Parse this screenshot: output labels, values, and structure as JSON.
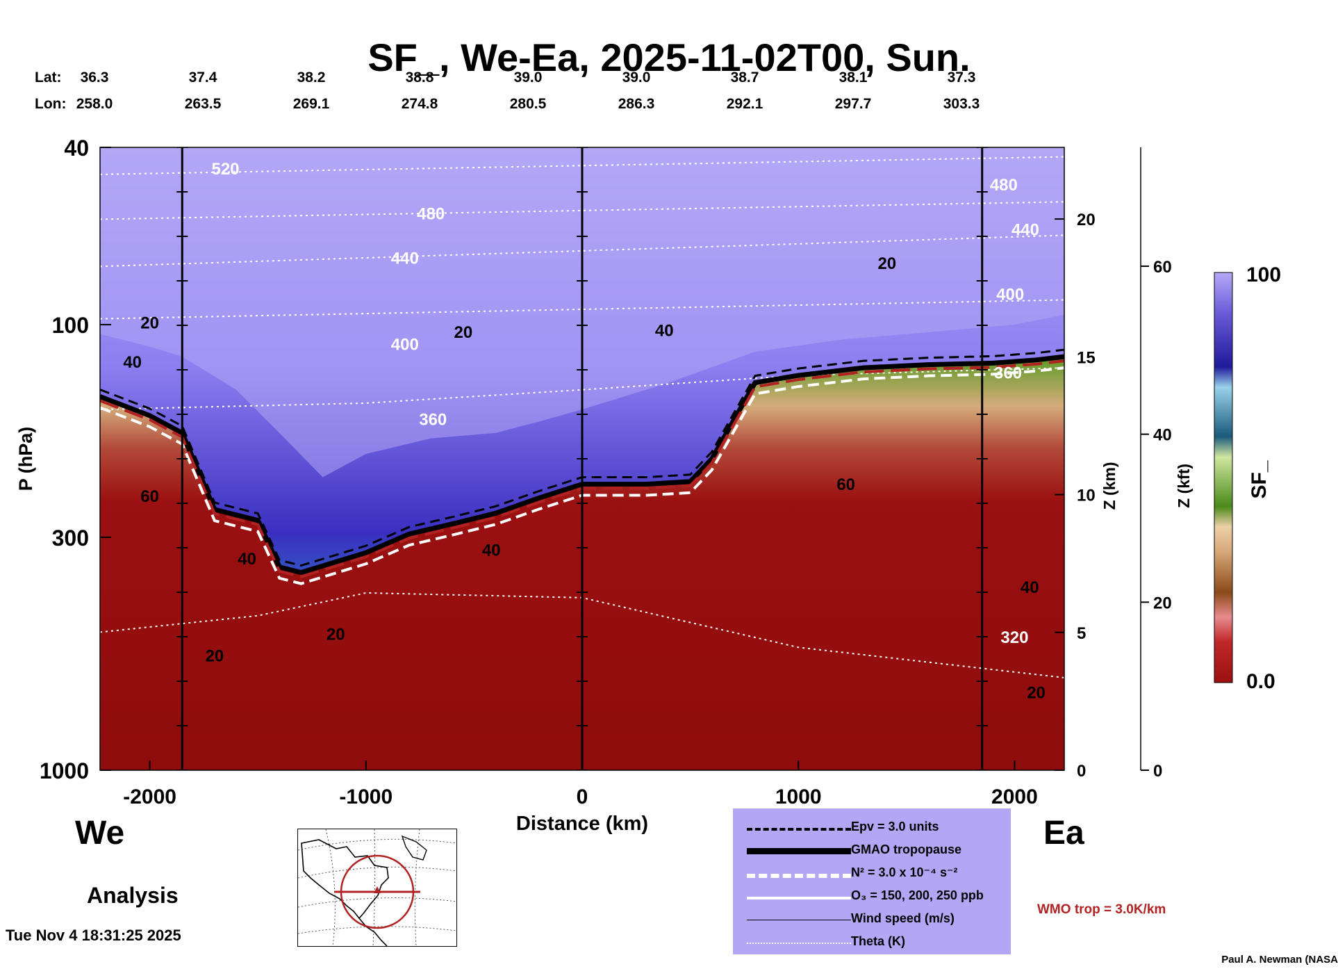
{
  "title": "SF_, We-Ea, 2025-11-02T00, Sun.",
  "latlon": {
    "lat_label": "Lat:",
    "lon_label": "Lon:",
    "lat": [
      "36.3",
      "37.4",
      "38.2",
      "38.8",
      "39.0",
      "39.0",
      "38.7",
      "38.1",
      "37.3"
    ],
    "lon": [
      "258.0",
      "263.5",
      "269.1",
      "274.8",
      "280.5",
      "286.3",
      "292.1",
      "297.7",
      "303.3"
    ]
  },
  "labels": {
    "west": "We",
    "east": "Ea",
    "analysis": "Analysis",
    "timestamp": "Tue Nov  4 18:31:25 2025",
    "credit": "Paul A. Newman (NASA",
    "wmo": "WMO trop = 3.0K/km"
  },
  "legend": {
    "items": [
      {
        "label": "Epv = 3.0 units",
        "style": "dashed-black"
      },
      {
        "label": "GMAO tropopause",
        "style": "thick-black"
      },
      {
        "label": "N² = 3.0 x 10⁻⁴ s⁻²",
        "style": "dashed-white"
      },
      {
        "label": "O₃ = 150, 200, 250 ppb",
        "style": "solid-white"
      },
      {
        "label": "Wind speed (m/s)",
        "style": "thin-black"
      },
      {
        "label": "Theta (K)",
        "style": "dotted-white"
      }
    ]
  },
  "colors": {
    "legend_bg": "#b3a7f5",
    "wmo_line": "#b22222",
    "strat_top": "#b5a9f7",
    "trop_red": "#9b1010"
  },
  "chart_data": {
    "type": "heatmap",
    "title": "SF_, We-Ea, 2025-11-02T00, Sun.",
    "xlabel": "Distance (km)",
    "ylabel": "P (hPa)",
    "y2label": "Z (km)",
    "y3label": "Z (kft)",
    "xlim": [
      -2230,
      2230
    ],
    "ylim": [
      1000,
      40
    ],
    "x_ticks": [
      -2000,
      -1000,
      0,
      1000,
      2000
    ],
    "x_tick_labels": [
      "-2000",
      "-1000",
      "0",
      "1000",
      "2000"
    ],
    "p_ticks": [
      40,
      100,
      300,
      1000
    ],
    "p_tick_labels": [
      "40",
      "100",
      "300",
      "1000"
    ],
    "zkm_ticks": [
      0,
      5,
      10,
      15,
      20
    ],
    "zkm_tick_labels": [
      "0",
      "5",
      "10",
      "15",
      "20"
    ],
    "zkft_ticks": [
      0,
      20,
      40,
      60
    ],
    "zkft_tick_labels": [
      "0",
      "20",
      "40",
      "60"
    ],
    "vertical_lines_km": [
      -1850,
      0,
      1850
    ],
    "colorbar": {
      "label": "SF_",
      "min_label": "0.0",
      "max_label": "100",
      "min": 0,
      "max": 100
    },
    "tropopause": {
      "x": [
        -2230,
        -2000,
        -1850,
        -1700,
        -1500,
        -1400,
        -1300,
        -1000,
        -800,
        -600,
        -400,
        -200,
        0,
        300,
        500,
        600,
        800,
        1000,
        1300,
        1600,
        1900,
        2100,
        2230
      ],
      "p": [
        145,
        160,
        175,
        260,
        275,
        350,
        360,
        325,
        295,
        280,
        265,
        245,
        228,
        228,
        225,
        200,
        135,
        130,
        125,
        123,
        122,
        120,
        118
      ]
    },
    "strat_boundary_p": {
      "x": [
        -2230,
        -2000,
        -1850,
        -1600,
        -1400,
        -1200,
        -1000,
        -700,
        -400,
        -200,
        0,
        400,
        800,
        1200,
        1600,
        2000,
        2230
      ],
      "p": [
        105,
        112,
        118,
        140,
        175,
        220,
        195,
        180,
        175,
        165,
        155,
        135,
        115,
        108,
        104,
        100,
        95
      ]
    },
    "theta_contours": [
      {
        "label": "520",
        "x": [
          -2230,
          2230
        ],
        "p": [
          46,
          42
        ]
      },
      {
        "label": "480",
        "x": [
          -2230,
          2230
        ],
        "p": [
          58,
          53
        ]
      },
      {
        "label": "440",
        "x": [
          -2230,
          2230
        ],
        "p": [
          74,
          63
        ]
      },
      {
        "label": "400",
        "x": [
          -2230,
          2230
        ],
        "p": [
          97,
          88
        ]
      },
      {
        "label": "360",
        "x": [
          -2230,
          -1000,
          0,
          1000,
          2230
        ],
        "p": [
          155,
          150,
          140,
          130,
          125
        ]
      },
      {
        "label": "320",
        "x": [
          -2230,
          -1500,
          -1000,
          0,
          1000,
          2230
        ],
        "p": [
          490,
          450,
          400,
          410,
          530,
          620
        ]
      }
    ],
    "contour_labels": [
      {
        "text": "520",
        "x": -1650,
        "p": 46,
        "color": "white"
      },
      {
        "text": "480",
        "x": -700,
        "p": 58,
        "color": "white"
      },
      {
        "text": "440",
        "x": -820,
        "p": 73,
        "color": "white"
      },
      {
        "text": "400",
        "x": -820,
        "p": 114,
        "color": "white"
      },
      {
        "text": "360",
        "x": -690,
        "p": 168,
        "color": "white"
      },
      {
        "text": "480",
        "x": 1950,
        "p": 50,
        "color": "white"
      },
      {
        "text": "440",
        "x": 2050,
        "p": 63,
        "color": "white"
      },
      {
        "text": "400",
        "x": 1980,
        "p": 88,
        "color": "white"
      },
      {
        "text": "360",
        "x": 1970,
        "p": 132,
        "color": "white"
      },
      {
        "text": "320",
        "x": 2000,
        "p": 518,
        "color": "white"
      },
      {
        "text": "20",
        "x": -2000,
        "p": 102,
        "color": "black"
      },
      {
        "text": "40",
        "x": -2080,
        "p": 125,
        "color": "black"
      },
      {
        "text": "20",
        "x": -550,
        "p": 107,
        "color": "black"
      },
      {
        "text": "40",
        "x": 380,
        "p": 106,
        "color": "black"
      },
      {
        "text": "20",
        "x": 1410,
        "p": 75,
        "color": "black"
      },
      {
        "text": "60",
        "x": -2000,
        "p": 250,
        "color": "black"
      },
      {
        "text": "40",
        "x": -1550,
        "p": 345,
        "color": "black"
      },
      {
        "text": "40",
        "x": -420,
        "p": 330,
        "color": "black"
      },
      {
        "text": "60",
        "x": 1220,
        "p": 235,
        "color": "black"
      },
      {
        "text": "40",
        "x": 2070,
        "p": 400,
        "color": "black"
      },
      {
        "text": "20",
        "x": -1140,
        "p": 510,
        "color": "black"
      },
      {
        "text": "20",
        "x": -1700,
        "p": 570,
        "color": "black"
      },
      {
        "text": "20",
        "x": 2100,
        "p": 690,
        "color": "black"
      }
    ]
  }
}
